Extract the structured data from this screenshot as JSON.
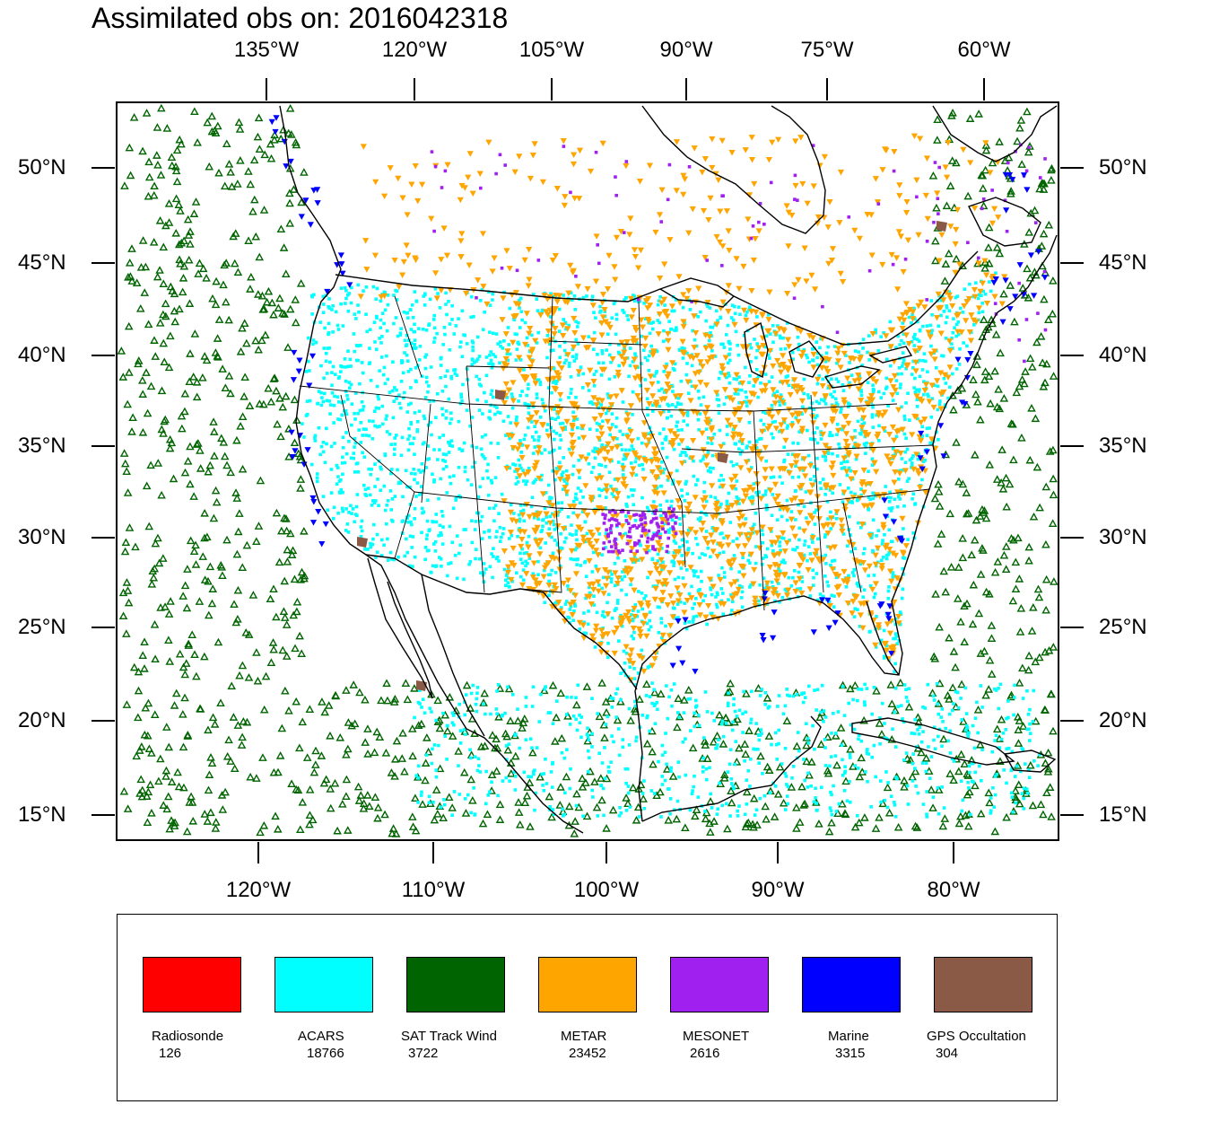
{
  "title": {
    "prefix": "Assimilated obs on:",
    "datetime": "2016042318"
  },
  "map": {
    "top_longitude_labels": [
      "135°W",
      "120°W",
      "105°W",
      "90°W",
      "75°W",
      "60°W"
    ],
    "bottom_longitude_labels": [
      "120°W",
      "110°W",
      "100°W",
      "90°W",
      "80°W"
    ],
    "left_latitude_labels": [
      "50°N",
      "45°N",
      "40°N",
      "35°N",
      "30°N",
      "25°N",
      "20°N",
      "15°N"
    ],
    "right_latitude_labels": [
      "50°N",
      "45°N",
      "40°N",
      "35°N",
      "30°N",
      "25°N",
      "20°N",
      "15°N"
    ]
  },
  "legend": {
    "items": [
      {
        "name": "Radiosonde",
        "count": "126",
        "color": "#ff0000"
      },
      {
        "name": "ACARS",
        "count": "18766",
        "color": "#00ffff"
      },
      {
        "name": "SAT Track Wind",
        "count": "3722",
        "color": "#006400"
      },
      {
        "name": "METAR",
        "count": "23452",
        "color": "#ffa500"
      },
      {
        "name": "MESONET",
        "count": "2616",
        "color": "#a020f0"
      },
      {
        "name": "Marine",
        "count": "3315",
        "color": "#0000ff"
      },
      {
        "name": "GPS Occultation",
        "count": "304",
        "color": "#8b5a46"
      }
    ]
  }
}
